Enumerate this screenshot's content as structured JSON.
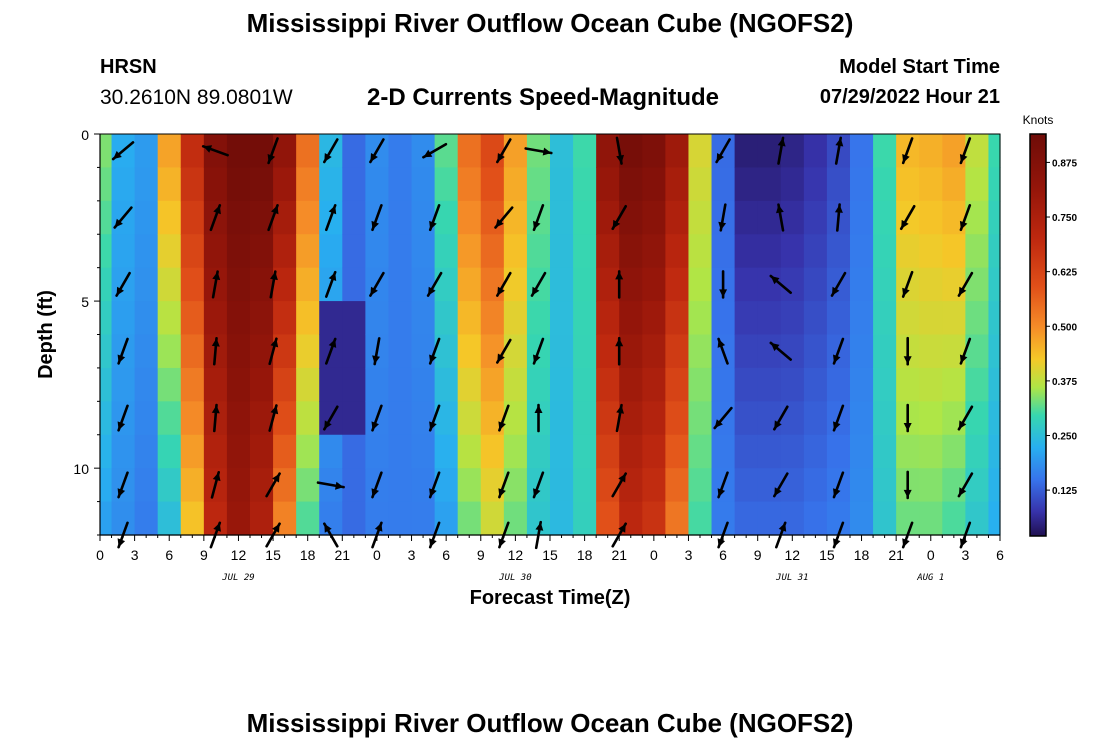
{
  "header": {
    "title": "Mississippi River Outflow Ocean Cube (NGOFS2)",
    "station": "HRSN",
    "coords": "30.2610N  89.0801W",
    "subtitle": "2-D Currents Speed-Magnitude",
    "model_start_label": "Model Start Time",
    "model_start_value": "07/29/2022 Hour 21"
  },
  "footer": {
    "title": "Mississippi River Outflow Ocean Cube (NGOFS2)"
  },
  "chart_data": {
    "type": "heatmap",
    "title": "2-D Currents Speed-Magnitude",
    "xlabel": "Forecast Time(Z)",
    "ylabel": "Depth (ft)",
    "x_unit": "hours since JUL 29 00Z",
    "xlim": [
      0,
      78
    ],
    "ylim": [
      0,
      12
    ],
    "x_tick_values": [
      0,
      3,
      6,
      9,
      12,
      15,
      18,
      21,
      24,
      27,
      30,
      33,
      36,
      39,
      42,
      45,
      48,
      51,
      54,
      57,
      60,
      63,
      66,
      69,
      72,
      75,
      78
    ],
    "x_tick_labels": [
      "0",
      "3",
      "6",
      "9",
      "12",
      "15",
      "18",
      "21",
      "0",
      "3",
      "6",
      "9",
      "12",
      "15",
      "18",
      "21",
      "0",
      "3",
      "6",
      "9",
      "12",
      "15",
      "18",
      "21",
      "0",
      "3",
      "6"
    ],
    "y_tick_values": [
      0,
      5,
      10
    ],
    "y_tick_labels": [
      "0",
      "5",
      "10"
    ],
    "date_labels": [
      {
        "label": "JUL 29",
        "x": 12
      },
      {
        "label": "JUL 30",
        "x": 36
      },
      {
        "label": "JUL 31",
        "x": 60
      },
      {
        "label": "AUG 1",
        "x": 72
      }
    ],
    "colorbar": {
      "unit": "Knots",
      "range": [
        0.02,
        0.94
      ],
      "tick_values": [
        0.125,
        0.25,
        0.375,
        0.5,
        0.625,
        0.75,
        0.875
      ],
      "tick_labels": [
        "0.125",
        "0.250",
        "0.375",
        "0.500",
        "0.625",
        "0.750",
        "0.875"
      ]
    },
    "speed_profile": {
      "hours": [
        0,
        2,
        4,
        6,
        8,
        10,
        12,
        14,
        16,
        18,
        20,
        22,
        24,
        26,
        28,
        30,
        32,
        34,
        36,
        38,
        40,
        42,
        44,
        46,
        48,
        50,
        52,
        54,
        56,
        58,
        60,
        62,
        64,
        66,
        68,
        70,
        72,
        74,
        76,
        78
      ],
      "surface_knots": [
        0.34,
        0.22,
        0.2,
        0.48,
        0.7,
        0.88,
        0.93,
        0.93,
        0.84,
        0.55,
        0.24,
        0.14,
        0.18,
        0.16,
        0.18,
        0.32,
        0.55,
        0.62,
        0.48,
        0.33,
        0.25,
        0.3,
        0.84,
        0.92,
        0.9,
        0.8,
        0.4,
        0.14,
        0.04,
        0.04,
        0.05,
        0.07,
        0.1,
        0.15,
        0.3,
        0.45,
        0.46,
        0.48,
        0.38,
        0.3
      ],
      "bottom_knots": [
        0.2,
        0.18,
        0.16,
        0.24,
        0.42,
        0.7,
        0.8,
        0.74,
        0.5,
        0.3,
        0.16,
        0.14,
        0.16,
        0.16,
        0.16,
        0.2,
        0.32,
        0.38,
        0.32,
        0.26,
        0.24,
        0.28,
        0.58,
        0.7,
        0.66,
        0.52,
        0.3,
        0.16,
        0.14,
        0.14,
        0.14,
        0.15,
        0.16,
        0.18,
        0.26,
        0.32,
        0.32,
        0.3,
        0.26,
        0.22
      ],
      "low_speed_pocket": {
        "hours": [
          20,
          22
        ],
        "depth_ft": [
          5,
          9
        ],
        "knots": 0.06
      }
    },
    "vector_hours": [
      2,
      10,
      15,
      20,
      24,
      29,
      35,
      38,
      45,
      54,
      59,
      64,
      70,
      75
    ],
    "vector_depths_ft": [
      0.5,
      2.5,
      4.5,
      6.5,
      8.5,
      10.5,
      12
    ],
    "vector_directions_deg": [
      [
        230,
        290,
        200,
        210,
        210,
        240,
        210,
        100,
        170,
        210,
        10,
        10,
        200,
        200
      ],
      [
        220,
        20,
        20,
        20,
        200,
        200,
        220,
        200,
        210,
        190,
        350,
        5,
        210,
        200
      ],
      [
        210,
        10,
        10,
        20,
        210,
        210,
        210,
        210,
        0,
        180,
        310,
        210,
        200,
        210
      ],
      [
        200,
        5,
        15,
        20,
        190,
        200,
        210,
        200,
        0,
        340,
        310,
        200,
        180,
        200
      ],
      [
        200,
        5,
        15,
        210,
        200,
        200,
        200,
        0,
        10,
        220,
        210,
        200,
        180,
        210
      ],
      [
        200,
        15,
        30,
        100,
        200,
        200,
        200,
        200,
        30,
        200,
        210,
        200,
        180,
        210
      ],
      [
        200,
        20,
        30,
        330,
        20,
        200,
        200,
        10,
        30,
        200,
        20,
        200,
        200,
        200
      ]
    ]
  }
}
